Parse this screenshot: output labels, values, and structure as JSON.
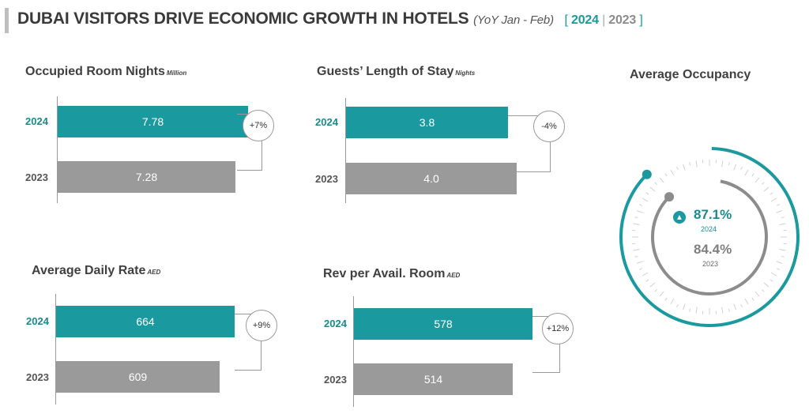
{
  "title": "DUBAI VISITORS DRIVE ECONOMIC GROWTH IN HOTELS",
  "period": "(YoY Jan - Feb)",
  "legend": {
    "open": "[",
    "y2024": "2024",
    "sep": "|",
    "y2023": "2023",
    "close": "]"
  },
  "colors": {
    "teal": "#1a9a9e",
    "gray": "#9a9a9a"
  },
  "chart_data": [
    {
      "type": "bar",
      "title": "Occupied Room Nights",
      "unit": "Million",
      "categories": [
        "2024",
        "2023"
      ],
      "values": [
        7.78,
        7.28
      ],
      "labels": [
        "7.78",
        "7.28"
      ],
      "change": "+7%"
    },
    {
      "type": "bar",
      "title": "Guests’ Length of Stay",
      "unit": "Nights",
      "categories": [
        "2024",
        "2023"
      ],
      "values": [
        3.8,
        4.0
      ],
      "labels": [
        "3.8",
        "4.0"
      ],
      "change": "-4%"
    },
    {
      "type": "bar",
      "title": "Average Daily Rate",
      "unit": "AED",
      "categories": [
        "2024",
        "2023"
      ],
      "values": [
        664,
        609
      ],
      "labels": [
        "664",
        "609"
      ],
      "change": "+9%"
    },
    {
      "type": "bar",
      "title": "Rev per Avail. Room",
      "unit": "AED",
      "categories": [
        "2024",
        "2023"
      ],
      "values": [
        578,
        514
      ],
      "labels": [
        "578",
        "514"
      ],
      "change": "+12%"
    },
    {
      "type": "gauge",
      "title": "Average Occupancy",
      "series": [
        {
          "name": "2024",
          "value": 87.1,
          "label": "87.1%"
        },
        {
          "name": "2023",
          "value": 84.4,
          "label": "84.4%"
        }
      ]
    }
  ]
}
